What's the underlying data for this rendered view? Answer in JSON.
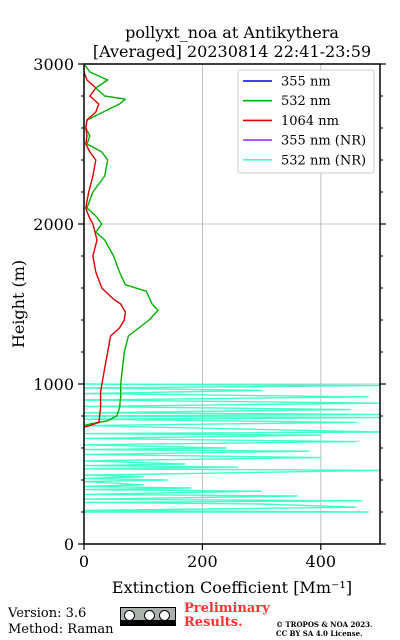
{
  "chart_data": {
    "type": "line",
    "title_line1": "pollyxt_noa at Antikythera",
    "title_line2": "[Averaged] 20230814 22:41-23:59",
    "xlabel": "Extinction Coefficient [Mm⁻¹]",
    "ylabel": "Height (m)",
    "xlim": [
      0,
      500
    ],
    "ylim": [
      0,
      3000
    ],
    "xticks": [
      "0",
      "200",
      "400"
    ],
    "yticks": [
      "0",
      "1000",
      "2000",
      "3000"
    ],
    "grid": true,
    "legend_position": "top-right",
    "series": [
      {
        "name": "355 nm",
        "color": "#0000ff",
        "points": []
      },
      {
        "name": "532 nm",
        "color": "#00b000",
        "points": [
          [
            0,
            740
          ],
          [
            10,
            750
          ],
          [
            40,
            770
          ],
          [
            55,
            800
          ],
          [
            60,
            850
          ],
          [
            62,
            920
          ],
          [
            62,
            1000
          ],
          [
            65,
            1100
          ],
          [
            68,
            1200
          ],
          [
            75,
            1300
          ],
          [
            110,
            1400
          ],
          [
            125,
            1460
          ],
          [
            115,
            1500
          ],
          [
            105,
            1580
          ],
          [
            70,
            1620
          ],
          [
            60,
            1700
          ],
          [
            50,
            1800
          ],
          [
            35,
            1900
          ],
          [
            20,
            1950
          ],
          [
            30,
            2000
          ],
          [
            20,
            2050
          ],
          [
            5,
            2100
          ],
          [
            15,
            2200
          ],
          [
            35,
            2300
          ],
          [
            40,
            2400
          ],
          [
            30,
            2450
          ],
          [
            5,
            2500
          ],
          [
            10,
            2550
          ],
          [
            3,
            2600
          ],
          [
            5,
            2650
          ],
          [
            60,
            2750
          ],
          [
            70,
            2780
          ],
          [
            35,
            2800
          ],
          [
            20,
            2850
          ],
          [
            40,
            2900
          ],
          [
            10,
            2950
          ],
          [
            0,
            3000
          ]
        ]
      },
      {
        "name": "1064 nm",
        "color": "#dd0000",
        "points": [
          [
            0,
            730
          ],
          [
            10,
            740
          ],
          [
            25,
            760
          ],
          [
            28,
            850
          ],
          [
            28,
            950
          ],
          [
            35,
            1100
          ],
          [
            40,
            1200
          ],
          [
            45,
            1300
          ],
          [
            60,
            1350
          ],
          [
            68,
            1400
          ],
          [
            70,
            1450
          ],
          [
            62,
            1500
          ],
          [
            50,
            1530
          ],
          [
            30,
            1600
          ],
          [
            20,
            1700
          ],
          [
            15,
            1800
          ],
          [
            22,
            1900
          ],
          [
            15,
            2000
          ],
          [
            8,
            2050
          ],
          [
            3,
            2100
          ],
          [
            8,
            2200
          ],
          [
            15,
            2300
          ],
          [
            20,
            2400
          ],
          [
            10,
            2450
          ],
          [
            3,
            2500
          ],
          [
            5,
            2550
          ],
          [
            3,
            2600
          ],
          [
            5,
            2650
          ],
          [
            20,
            2700
          ],
          [
            25,
            2750
          ],
          [
            10,
            2800
          ],
          [
            20,
            2850
          ],
          [
            5,
            2900
          ],
          [
            0,
            2950
          ]
        ]
      },
      {
        "name": "355 nm (NR)",
        "color": "#9b30ff",
        "points": []
      },
      {
        "name": "532 nm (NR)",
        "color": "#40ffc8",
        "points": [
          [
            0,
            200
          ],
          [
            480,
            200
          ],
          [
            0,
            210
          ],
          [
            460,
            230
          ],
          [
            300,
            250
          ],
          [
            0,
            260
          ],
          [
            470,
            270
          ],
          [
            0,
            280
          ],
          [
            360,
            300
          ],
          [
            0,
            310
          ],
          [
            300,
            330
          ],
          [
            0,
            340
          ],
          [
            180,
            350
          ],
          [
            0,
            360
          ],
          [
            100,
            370
          ],
          [
            0,
            390
          ],
          [
            140,
            400
          ],
          [
            0,
            410
          ],
          [
            100,
            420
          ],
          [
            0,
            430
          ],
          [
            500,
            460
          ],
          [
            0,
            470
          ],
          [
            260,
            480
          ],
          [
            0,
            490
          ],
          [
            170,
            500
          ],
          [
            0,
            520
          ],
          [
            400,
            540
          ],
          [
            0,
            560
          ],
          [
            380,
            580
          ],
          [
            0,
            590
          ],
          [
            240,
            600
          ],
          [
            0,
            620
          ],
          [
            460,
            640
          ],
          [
            0,
            660
          ],
          [
            400,
            680
          ],
          [
            0,
            690
          ],
          [
            500,
            700
          ],
          [
            0,
            740
          ],
          [
            460,
            760
          ],
          [
            0,
            780
          ],
          [
            500,
            790
          ],
          [
            0,
            800
          ],
          [
            500,
            810
          ],
          [
            0,
            820
          ],
          [
            450,
            840
          ],
          [
            0,
            860
          ],
          [
            500,
            880
          ],
          [
            0,
            900
          ],
          [
            480,
            920
          ],
          [
            0,
            940
          ],
          [
            300,
            960
          ],
          [
            0,
            975
          ],
          [
            500,
            990
          ],
          [
            0,
            1000
          ]
        ]
      }
    ]
  },
  "footer": {
    "version": "Version: 3.6",
    "method": "Method: Raman",
    "cc_label": "BY SA",
    "prelim_line1": "Preliminary",
    "prelim_line2": "Results.",
    "license_line1": "© TROPOS & NOA 2023.",
    "license_line2": "CC BY SA 4.0 License."
  }
}
